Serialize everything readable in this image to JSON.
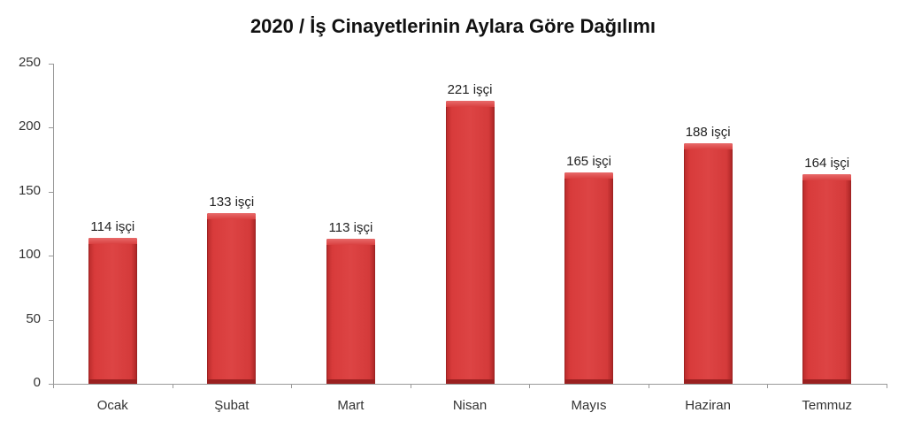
{
  "chart_data": {
    "type": "bar",
    "title": "2020 / İş Cinayetlerinin Aylara Göre Dağılımı",
    "categories": [
      "Ocak",
      "Şubat",
      "Mart",
      "Nisan",
      "Mayıs",
      "Haziran",
      "Temmuz"
    ],
    "values": [
      114,
      133,
      113,
      221,
      165,
      188,
      164
    ],
    "data_labels": [
      "114 işçi",
      "133 işçi",
      "113 işçi",
      "221 işçi",
      "165 işçi",
      "188 işçi",
      "164 işçi"
    ],
    "xlabel": "",
    "ylabel": "",
    "ylim": [
      0,
      250
    ],
    "yticks": [
      "0",
      "50",
      "100",
      "150",
      "200",
      "250"
    ],
    "grid": false,
    "legend": "none",
    "bar_color": "#d83b3b"
  }
}
